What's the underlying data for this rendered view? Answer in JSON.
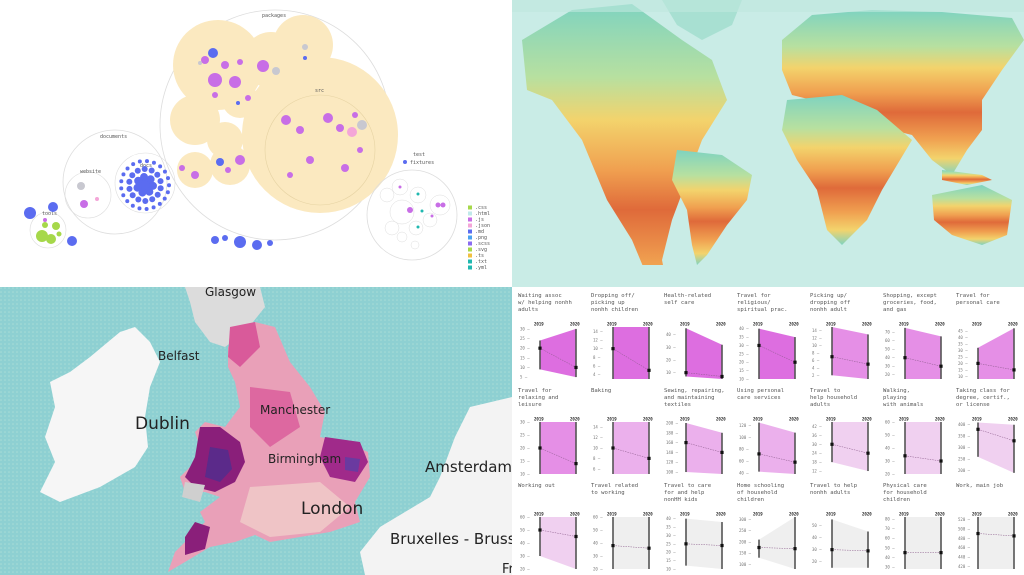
{
  "circle_pack": {
    "groups": {
      "packages": "packages",
      "documents": "documents",
      "docs": "docs",
      "website": "website",
      "tools": "tools",
      "test": "test",
      "fixtures": "fixtures",
      "src": "src"
    },
    "legend": [
      {
        "label": ".css",
        "color": "#a6d84a"
      },
      {
        "label": ".html",
        "color": "#bfe9ea"
      },
      {
        "label": ".js",
        "color": "#c86ee6"
      },
      {
        "label": ".json",
        "color": "#f4a6d8"
      },
      {
        "label": ".md",
        "color": "#5b6cf0"
      },
      {
        "label": ".png",
        "color": "#4aa3f0"
      },
      {
        "label": ".scss",
        "color": "#8a6cf0"
      },
      {
        "label": ".svg",
        "color": "#a6d84a"
      },
      {
        "label": ".ts",
        "color": "#f0c040"
      },
      {
        "label": ".txt",
        "color": "#20b8b0"
      },
      {
        "label": ".yml",
        "color": "#20b8b0"
      }
    ]
  },
  "world_map": {
    "colors": {
      "ocean": "#c9ece6",
      "cold": "#7fd3c0",
      "mild": "#f3d36c",
      "warm": "#f0a050",
      "hot": "#df6a3a"
    }
  },
  "uk_map": {
    "labels": {
      "glasgow": "Glasgow",
      "belfast": "Belfast",
      "dublin": "Dublin",
      "manchester": "Manchester",
      "birmingham": "Birmingham",
      "london": "London",
      "amsterdam": "Amsterdam",
      "bruxelles": "Bruxelles - Brussel",
      "france_partial": "Fr"
    }
  },
  "chart_data": {
    "type": "small-multiples-slope",
    "years": [
      "2019",
      "2020"
    ],
    "panels": [
      {
        "title": [
          "Waiting assoc",
          "w/ helping nonhh",
          "adults"
        ],
        "ticks": [
          5,
          10,
          15,
          20,
          25,
          30
        ],
        "range": [
          4,
          31
        ],
        "band": [
          9,
          24,
          5,
          30
        ],
        "values": [
          20,
          10
        ],
        "fill": "#dd6ee0"
      },
      {
        "title": [
          "Dropping off/",
          "picking up",
          "nonhh children"
        ],
        "ticks": [
          4,
          6,
          8,
          10,
          12,
          14
        ],
        "range": [
          3,
          15
        ],
        "band": [
          3,
          15,
          3,
          15
        ],
        "values": [
          10,
          5
        ],
        "fill": "#dd6ee0"
      },
      {
        "title": [
          "Health-related",
          "self care"
        ],
        "ticks": [
          10,
          20,
          30,
          40
        ],
        "range": [
          5,
          46
        ],
        "band": [
          7,
          45,
          5,
          32
        ],
        "values": [
          10,
          7
        ],
        "fill": "#dd6ee0"
      },
      {
        "title": [
          "Travel for",
          "religious/",
          "spiritual prac."
        ],
        "ticks": [
          10,
          15,
          20,
          25,
          30,
          35,
          40
        ],
        "range": [
          10,
          41
        ],
        "band": [
          10,
          40,
          10,
          35
        ],
        "values": [
          30,
          20
        ],
        "fill": "#dd6ee0"
      },
      {
        "title": [
          "Picking up/",
          "dropping off",
          "nonhh adult"
        ],
        "ticks": [
          2,
          4,
          6,
          8,
          10,
          12,
          14
        ],
        "range": [
          1,
          15
        ],
        "band": [
          2,
          15,
          1,
          13
        ],
        "values": [
          7,
          5
        ],
        "fill": "#e58fe6"
      },
      {
        "title": [
          "Shopping, except",
          "groceries, food,",
          "and gas"
        ],
        "ticks": [
          20,
          30,
          40,
          50,
          60,
          70
        ],
        "range": [
          15,
          76
        ],
        "band": [
          15,
          75,
          15,
          65
        ],
        "values": [
          40,
          30
        ],
        "fill": "#e58fe6"
      },
      {
        "title": [
          "Travel for",
          "personal care"
        ],
        "ticks": [
          10,
          15,
          20,
          25,
          30,
          35,
          40,
          45
        ],
        "range": [
          8,
          48
        ],
        "band": [
          8,
          32,
          8,
          47
        ],
        "values": [
          20,
          15
        ],
        "fill": "#e58fe6"
      },
      {
        "title": [
          "Travel for",
          "relaxing and",
          "leisure"
        ],
        "ticks": [
          10,
          15,
          20,
          25,
          30
        ],
        "range": [
          10,
          30
        ],
        "band": [
          10,
          30,
          10,
          30
        ],
        "values": [
          20,
          14
        ],
        "fill": "#e58fe6"
      },
      {
        "title": [
          "Baking"
        ],
        "ticks": [
          6,
          8,
          10,
          12,
          14
        ],
        "range": [
          5,
          15
        ],
        "band": [
          5,
          15,
          5,
          15
        ],
        "values": [
          10,
          8
        ],
        "fill": "#ebb0ec"
      },
      {
        "title": [
          "Sewing, repairing,",
          "and maintaining",
          "textiles"
        ],
        "ticks": [
          100,
          120,
          140,
          160,
          180,
          200
        ],
        "range": [
          96,
          202
        ],
        "band": [
          100,
          200,
          96,
          180
        ],
        "values": [
          160,
          140
        ],
        "fill": "#ebb0ec"
      },
      {
        "title": [
          "Using personal",
          "care services"
        ],
        "ticks": [
          40,
          60,
          80,
          100,
          120
        ],
        "range": [
          38,
          126
        ],
        "band": [
          42,
          125,
          38,
          108
        ],
        "values": [
          72,
          58
        ],
        "fill": "#ebb0ec"
      },
      {
        "title": [
          "Travel to",
          "help household",
          "adults"
        ],
        "ticks": [
          12,
          18,
          24,
          30,
          36,
          42
        ],
        "range": [
          10,
          45
        ],
        "band": [
          18,
          45,
          12,
          45
        ],
        "values": [
          30,
          24
        ],
        "fill": "#f0d0f0"
      },
      {
        "title": [
          "Walking,",
          "playing",
          "with animals"
        ],
        "ticks": [
          20,
          30,
          40,
          50,
          60
        ],
        "range": [
          20,
          60
        ],
        "band": [
          20,
          60,
          20,
          60
        ],
        "values": [
          34,
          30
        ],
        "fill": "#f0d0f0"
      },
      {
        "title": [
          "Taking class for",
          "degree, certif.,",
          "or license"
        ],
        "ticks": [
          200,
          250,
          300,
          350,
          400
        ],
        "range": [
          185,
          412
        ],
        "band": [
          260,
          410,
          190,
          400
        ],
        "values": [
          380,
          330
        ],
        "fill": "#f0d0f0"
      },
      {
        "title": [
          "Working out"
        ],
        "ticks": [
          20,
          30,
          40,
          50,
          60
        ],
        "range": [
          20,
          60
        ],
        "band": [
          30,
          60,
          20,
          60
        ],
        "values": [
          50,
          45
        ],
        "fill": "#f0d0f0"
      },
      {
        "title": [
          "Travel related",
          "to working"
        ],
        "ticks": [
          20,
          30,
          40,
          50,
          60
        ],
        "range": [
          20,
          60
        ],
        "band": [
          20,
          60,
          20,
          60
        ],
        "values": [
          38,
          36
        ],
        "fill": "#efefef"
      },
      {
        "title": [
          "Travel to care",
          "for and help",
          "nonHH kids"
        ],
        "ticks": [
          10,
          15,
          20,
          25,
          30,
          35,
          40
        ],
        "range": [
          10,
          41
        ],
        "band": [
          12,
          40,
          10,
          38
        ],
        "values": [
          25,
          24
        ],
        "fill": "#efefef"
      },
      {
        "title": [
          "Home schooling",
          "of household",
          "children"
        ],
        "ticks": [
          100,
          150,
          200,
          250,
          300
        ],
        "range": [
          80,
          310
        ],
        "band": [
          130,
          210,
          80,
          310
        ],
        "values": [
          175,
          170
        ],
        "fill": "#efefef"
      },
      {
        "title": [
          "Travel to help",
          "nonhh adults"
        ],
        "ticks": [
          20,
          30,
          40,
          50
        ],
        "range": [
          14,
          57
        ],
        "band": [
          15,
          55,
          15,
          45
        ],
        "values": [
          30,
          29
        ],
        "fill": "#efefef"
      },
      {
        "title": [
          "Physical care",
          "for household",
          "children"
        ],
        "ticks": [
          30,
          40,
          50,
          60,
          70,
          80
        ],
        "range": [
          28,
          82
        ],
        "band": [
          28,
          82,
          28,
          82
        ],
        "values": [
          45,
          45
        ],
        "fill": "#efefef"
      },
      {
        "title": [
          "Work, main job"
        ],
        "ticks": [
          420,
          440,
          460,
          480,
          500,
          520
        ],
        "range": [
          415,
          525
        ],
        "band": [
          415,
          525,
          415,
          525
        ],
        "values": [
          490,
          485
        ],
        "fill": "#efefef"
      }
    ]
  }
}
